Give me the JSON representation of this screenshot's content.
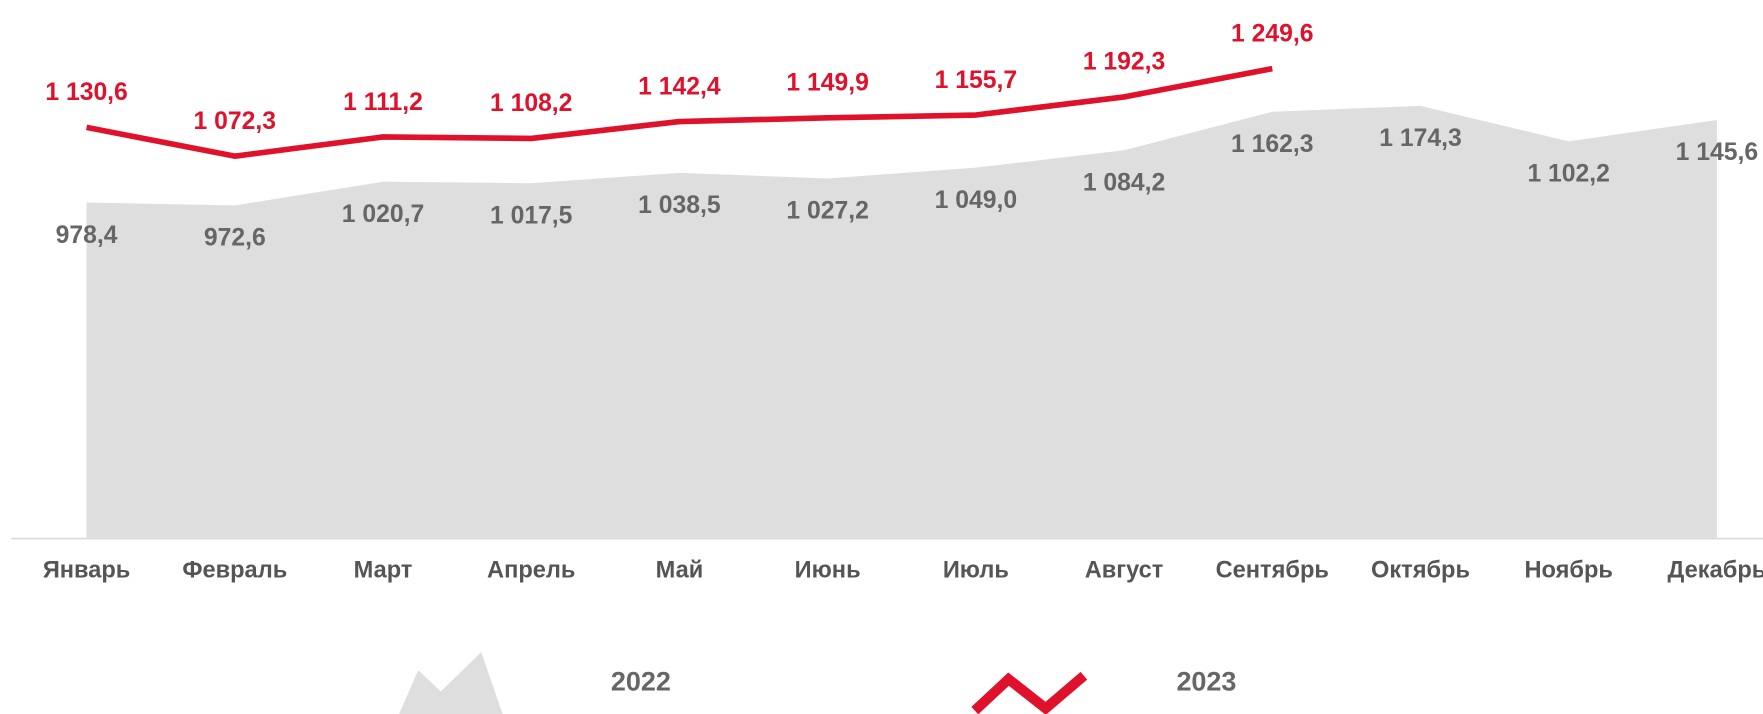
{
  "chart_data": {
    "type": "area-line",
    "categories": [
      "Январь",
      "Февраль",
      "Март",
      "Апрель",
      "Май",
      "Июнь",
      "Июль",
      "Август",
      "Сентябрь",
      "Октябрь",
      "Ноябрь",
      "Декабрь"
    ],
    "series": [
      {
        "name": "2022",
        "color": "#dedede",
        "label_color": "#666666",
        "values": [
          978.4,
          972.6,
          1020.7,
          1017.5,
          1038.5,
          1027.2,
          1049.0,
          1084.2,
          1162.3,
          1174.3,
          1102.2,
          1145.6
        ],
        "value_labels": [
          "978,4",
          "972,6",
          "1 020,7",
          "1 017,5",
          "1 038,5",
          "1 027,2",
          "1 049,0",
          "1 084,2",
          "1 162,3",
          "1 174,3",
          "1 102,2",
          "1 145,6"
        ]
      },
      {
        "name": "2023",
        "color": "#e0112b",
        "label_color": "#e0112b",
        "values": [
          1130.6,
          1072.3,
          1111.2,
          1108.2,
          1142.4,
          1149.9,
          1155.7,
          1192.3,
          1249.6,
          null,
          null,
          null
        ],
        "value_labels": [
          "1 130,6",
          "1 072,3",
          "1 111,2",
          "1 108,2",
          "1 142,4",
          "1 149,9",
          "1 155,7",
          "1 192,3",
          "1 249,6",
          null,
          null,
          null
        ]
      }
    ],
    "ylim": [
      300,
      1400
    ]
  }
}
